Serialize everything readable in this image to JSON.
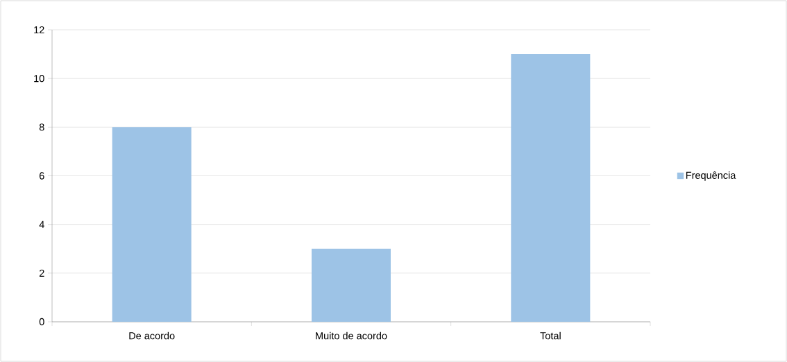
{
  "chart_data": {
    "type": "bar",
    "categories": [
      "De acordo",
      "Muito de acordo",
      "Total"
    ],
    "series": [
      {
        "name": "Frequência",
        "color": "#9dc3e6",
        "values": [
          8,
          3,
          11
        ]
      }
    ],
    "ylim": [
      0,
      12
    ],
    "yticks": [
      0,
      2,
      4,
      6,
      8,
      10,
      12
    ],
    "grid": "y",
    "legend": "right"
  }
}
